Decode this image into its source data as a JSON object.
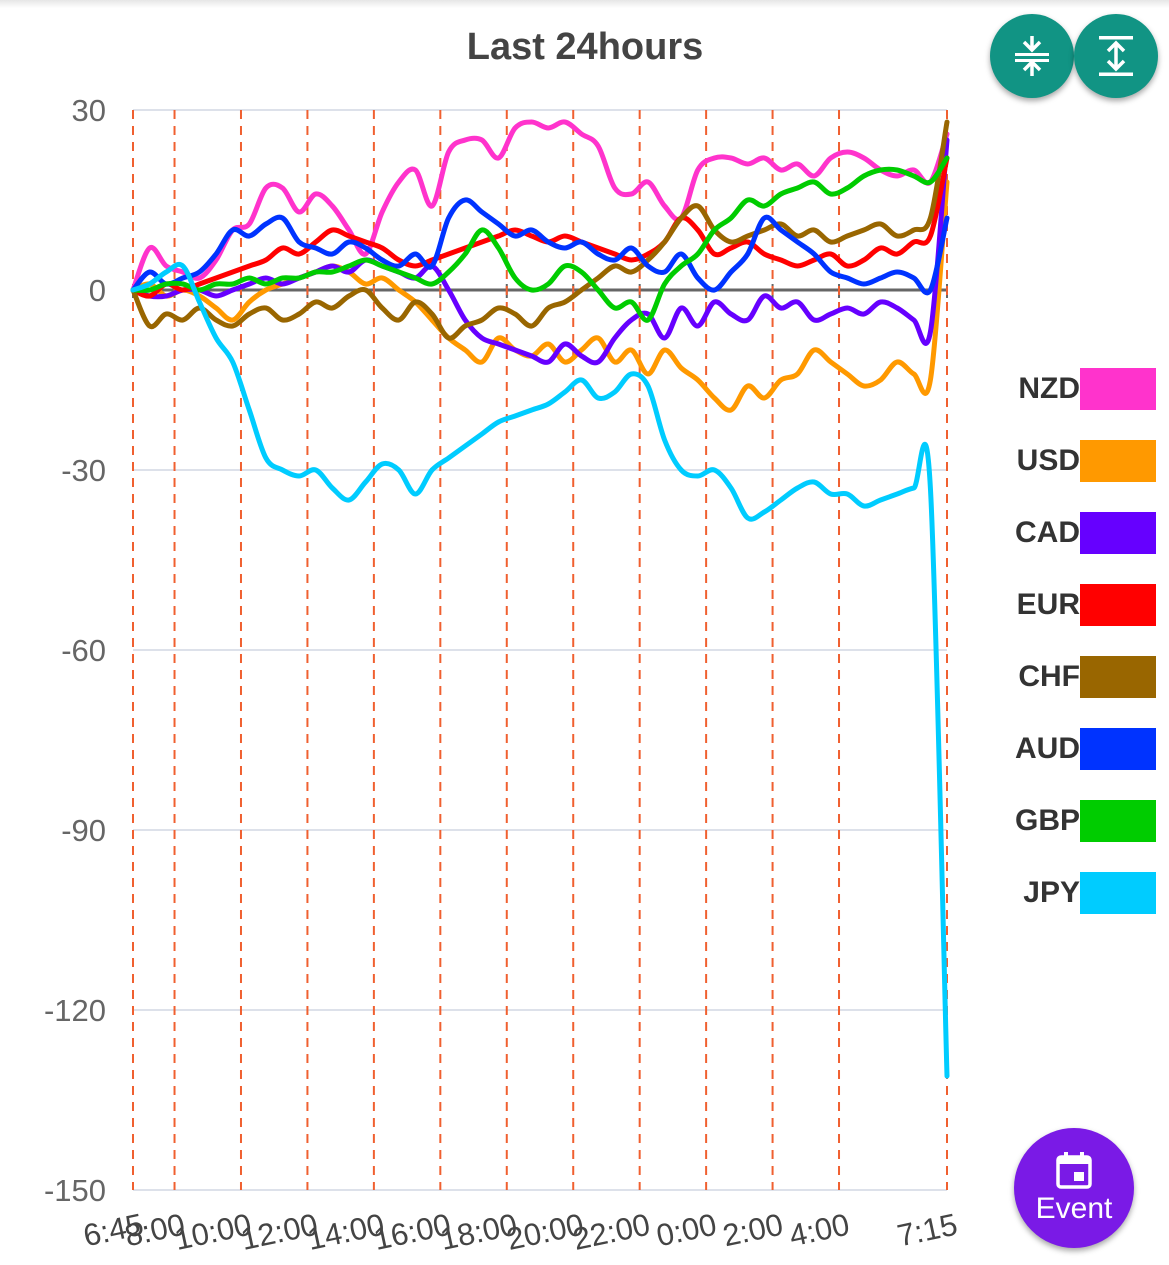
{
  "chart_data": {
    "type": "line",
    "title": "Last 24hours",
    "ylim": [
      -150,
      30
    ],
    "y_ticks": [
      30,
      0,
      -30,
      -60,
      -90,
      -120,
      -150
    ],
    "x_tick_labels": [
      "6:45",
      "8:00",
      "10:00",
      "12:00",
      "14:00",
      "16:00",
      "18:00",
      "20:00",
      "22:00",
      "0:00",
      "2:00",
      "4:00",
      "7:15"
    ],
    "x_tick_hours": [
      0,
      1.25,
      3.25,
      5.25,
      7.25,
      9.25,
      11.25,
      13.25,
      15.25,
      17.25,
      19.25,
      21.25,
      24.5
    ],
    "grid": true,
    "legend_position": "right",
    "series": [
      {
        "name": "NZD",
        "color": "#ff33cc",
        "x": [
          0,
          0.5,
          1,
          1.5,
          2,
          2.5,
          3,
          3.5,
          4,
          4.5,
          5,
          5.5,
          6,
          6.5,
          7,
          7.5,
          8,
          8.5,
          9,
          9.5,
          10,
          10.5,
          11,
          11.5,
          12,
          12.5,
          13,
          13.5,
          14,
          14.5,
          15,
          15.5,
          16,
          16.5,
          17,
          17.5,
          18,
          18.5,
          19,
          19.5,
          20,
          20.5,
          21,
          21.5,
          22,
          22.5,
          23,
          23.5,
          24,
          24.5
        ],
        "values": [
          0,
          7,
          4,
          3,
          2,
          5,
          10,
          11,
          17,
          17,
          13,
          16,
          14,
          10,
          6,
          13,
          18,
          20,
          14,
          23,
          25,
          25,
          22,
          27,
          28,
          27,
          28,
          26,
          24,
          17,
          16,
          18,
          14,
          12,
          20,
          22,
          22,
          21,
          22,
          20,
          21,
          19,
          22,
          23,
          22,
          20,
          19,
          20,
          18,
          26
        ]
      },
      {
        "name": "USD",
        "color": "#ff9900",
        "x": [
          0,
          0.5,
          1,
          1.5,
          2,
          2.5,
          3,
          3.5,
          4,
          4.5,
          5,
          5.5,
          6,
          6.5,
          7,
          7.5,
          8,
          8.5,
          9,
          9.5,
          10,
          10.5,
          11,
          11.5,
          12,
          12.5,
          13,
          13.5,
          14,
          14.5,
          15,
          15.5,
          16,
          16.5,
          17,
          17.5,
          18,
          18.5,
          19,
          19.5,
          20,
          20.5,
          21,
          21.5,
          22,
          22.5,
          23,
          23.5,
          24,
          24.5
        ],
        "values": [
          0,
          1,
          -1,
          0,
          -1,
          -3,
          -5,
          -2,
          0,
          1,
          2,
          3,
          4,
          3,
          1,
          2,
          0,
          -2,
          -5,
          -8,
          -10,
          -12,
          -8,
          -10,
          -11,
          -9,
          -12,
          -10,
          -8,
          -12,
          -10,
          -14,
          -10,
          -13,
          -15,
          -18,
          -20,
          -16,
          -18,
          -15,
          -14,
          -10,
          -12,
          -14,
          -16,
          -15,
          -12,
          -14,
          -15,
          18
        ]
      },
      {
        "name": "CAD",
        "color": "#6600ff",
        "x": [
          0,
          0.5,
          1,
          1.5,
          2,
          2.5,
          3,
          3.5,
          4,
          4.5,
          5,
          5.5,
          6,
          6.5,
          7,
          7.5,
          8,
          8.5,
          9,
          9.5,
          10,
          10.5,
          11,
          11.5,
          12,
          12.5,
          13,
          13.5,
          14,
          14.5,
          15,
          15.5,
          16,
          16.5,
          17,
          17.5,
          18,
          18.5,
          19,
          19.5,
          20,
          20.5,
          21,
          21.5,
          22,
          22.5,
          23,
          23.5,
          24,
          24.5
        ],
        "values": [
          0,
          -1,
          -1,
          0,
          0,
          -1,
          0,
          1,
          2,
          1,
          2,
          3,
          4,
          3,
          5,
          4,
          3,
          2,
          4,
          0,
          -5,
          -8,
          -9,
          -10,
          -11,
          -12,
          -9,
          -11,
          -12,
          -8,
          -5,
          -4,
          -8,
          -3,
          -6,
          -2,
          -4,
          -5,
          -1,
          -3,
          -2,
          -5,
          -4,
          -3,
          -4,
          -2,
          -3,
          -5,
          -7,
          25
        ]
      },
      {
        "name": "EUR",
        "color": "#ff0000",
        "x": [
          0,
          0.5,
          1,
          1.5,
          2,
          2.5,
          3,
          3.5,
          4,
          4.5,
          5,
          5.5,
          6,
          6.5,
          7,
          7.5,
          8,
          8.5,
          9,
          9.5,
          10,
          10.5,
          11,
          11.5,
          12,
          12.5,
          13,
          13.5,
          14,
          14.5,
          15,
          15.5,
          16,
          16.5,
          17,
          17.5,
          18,
          18.5,
          19,
          19.5,
          20,
          20.5,
          21,
          21.5,
          22,
          22.5,
          23,
          23.5,
          24,
          24.5
        ],
        "values": [
          0,
          -1,
          1,
          0,
          1,
          2,
          3,
          4,
          5,
          7,
          6,
          8,
          10,
          9,
          8,
          7,
          5,
          4,
          5,
          6,
          7,
          8,
          9,
          10,
          9,
          8,
          9,
          8,
          7,
          6,
          5,
          6,
          8,
          12,
          10,
          6,
          7,
          8,
          6,
          5,
          4,
          5,
          6,
          4,
          5,
          7,
          6,
          8,
          9,
          22
        ]
      },
      {
        "name": "CHF",
        "color": "#996600",
        "x": [
          0,
          0.5,
          1,
          1.5,
          2,
          2.5,
          3,
          3.5,
          4,
          4.5,
          5,
          5.5,
          6,
          6.5,
          7,
          7.5,
          8,
          8.5,
          9,
          9.5,
          10,
          10.5,
          11,
          11.5,
          12,
          12.5,
          13,
          13.5,
          14,
          14.5,
          15,
          15.5,
          16,
          16.5,
          17,
          17.5,
          18,
          18.5,
          19,
          19.5,
          20,
          20.5,
          21,
          21.5,
          22,
          22.5,
          23,
          23.5,
          24,
          24.5
        ],
        "values": [
          0,
          -6,
          -4,
          -5,
          -3,
          -5,
          -6,
          -4,
          -3,
          -5,
          -4,
          -2,
          -3,
          -1,
          0,
          -3,
          -5,
          -2,
          -4,
          -8,
          -6,
          -5,
          -3,
          -4,
          -6,
          -3,
          -2,
          0,
          2,
          4,
          3,
          5,
          8,
          12,
          14,
          10,
          8,
          9,
          10,
          11,
          9,
          10,
          8,
          9,
          10,
          11,
          9,
          10,
          12,
          28
        ]
      },
      {
        "name": "AUD",
        "color": "#0033ff",
        "x": [
          0,
          0.5,
          1,
          1.5,
          2,
          2.5,
          3,
          3.5,
          4,
          4.5,
          5,
          5.5,
          6,
          6.5,
          7,
          7.5,
          8,
          8.5,
          9,
          9.5,
          10,
          10.5,
          11,
          11.5,
          12,
          12.5,
          13,
          13.5,
          14,
          14.5,
          15,
          15.5,
          16,
          16.5,
          17,
          17.5,
          18,
          18.5,
          19,
          19.5,
          20,
          20.5,
          21,
          21.5,
          22,
          22.5,
          23,
          23.5,
          24,
          24.5
        ],
        "values": [
          0,
          3,
          1,
          2,
          3,
          6,
          10,
          9,
          11,
          12,
          8,
          7,
          6,
          8,
          7,
          5,
          4,
          6,
          4,
          12,
          15,
          13,
          11,
          9,
          10,
          8,
          7,
          8,
          6,
          5,
          7,
          4,
          3,
          6,
          2,
          0,
          3,
          6,
          12,
          10,
          8,
          6,
          3,
          2,
          1,
          2,
          3,
          2,
          0,
          12
        ]
      },
      {
        "name": "GBP",
        "color": "#00cc00",
        "x": [
          0,
          0.5,
          1,
          1.5,
          2,
          2.5,
          3,
          3.5,
          4,
          4.5,
          5,
          5.5,
          6,
          6.5,
          7,
          7.5,
          8,
          8.5,
          9,
          9.5,
          10,
          10.5,
          11,
          11.5,
          12,
          12.5,
          13,
          13.5,
          14,
          14.5,
          15,
          15.5,
          16,
          16.5,
          17,
          17.5,
          18,
          18.5,
          19,
          19.5,
          20,
          20.5,
          21,
          21.5,
          22,
          22.5,
          23,
          23.5,
          24,
          24.5
        ],
        "values": [
          0,
          0,
          1,
          1,
          0,
          1,
          1,
          2,
          1,
          2,
          2,
          3,
          3,
          4,
          5,
          4,
          3,
          2,
          1,
          3,
          6,
          10,
          7,
          2,
          0,
          1,
          4,
          3,
          0,
          -3,
          -2,
          -5,
          1,
          4,
          6,
          10,
          12,
          15,
          14,
          16,
          17,
          18,
          16,
          17,
          19,
          20,
          20,
          19,
          18,
          22
        ]
      },
      {
        "name": "JPY",
        "color": "#00ccff",
        "x": [
          0,
          0.5,
          1,
          1.5,
          2,
          2.5,
          3,
          3.5,
          4,
          4.5,
          5,
          5.5,
          6,
          6.5,
          7,
          7.5,
          8,
          8.5,
          9,
          9.5,
          10,
          10.5,
          11,
          11.5,
          12,
          12.5,
          13,
          13.5,
          14,
          14.5,
          15,
          15.5,
          16,
          16.5,
          17,
          17.5,
          18,
          18.5,
          19,
          19.5,
          20,
          20.5,
          21,
          21.5,
          22,
          22.5,
          23,
          23.5,
          24,
          24.5
        ],
        "values": [
          0,
          1,
          3,
          4,
          -2,
          -8,
          -12,
          -20,
          -28,
          -30,
          -31,
          -30,
          -33,
          -35,
          -32,
          -29,
          -30,
          -34,
          -30,
          -28,
          -26,
          -24,
          -22,
          -21,
          -20,
          -19,
          -17,
          -15,
          -18,
          -17,
          -14,
          -16,
          -25,
          -30,
          -31,
          -30,
          -33,
          -38,
          -37,
          -35,
          -33,
          -32,
          -34,
          -34,
          -36,
          -35,
          -34,
          -33,
          -33,
          -131
        ]
      }
    ]
  },
  "buttons": {
    "event_label": "Event"
  }
}
